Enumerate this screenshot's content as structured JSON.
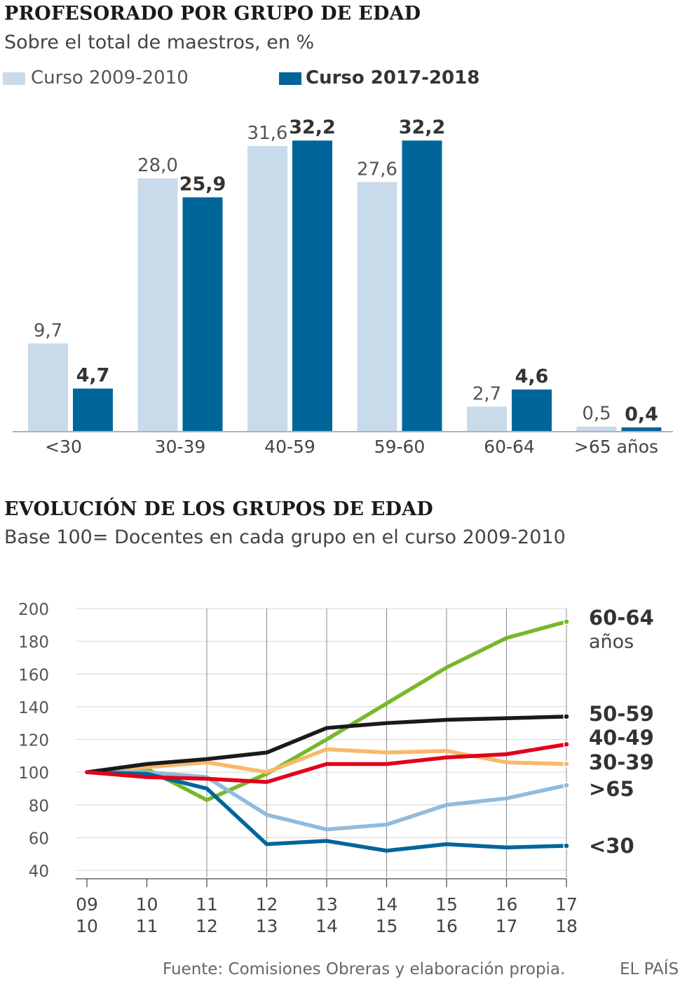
{
  "chart_data": [
    {
      "type": "bar",
      "title": "PROFESORADO POR GRUPO DE EDAD",
      "subtitle": "Sobre el total de maestros, en %",
      "categories": [
        "<30",
        "30-39",
        "40-59",
        "59-60",
        "60-64",
        ">65 años"
      ],
      "series": [
        {
          "name": "Curso 2009-2010",
          "color": "#c9dbea",
          "values": [
            9.7,
            28.0,
            31.6,
            27.6,
            2.7,
            0.5
          ],
          "labels": [
            "9,7",
            "28,0",
            "31,6",
            "27,6",
            "2,7",
            "0,5"
          ]
        },
        {
          "name": "Curso 2017-2018",
          "color": "#00669a",
          "values": [
            4.7,
            25.9,
            32.2,
            32.2,
            4.6,
            0.4
          ],
          "labels": [
            "4,7",
            "25,9",
            "32,2",
            "32,2",
            "4,6",
            "0,4"
          ]
        }
      ],
      "ylim": [
        0,
        33
      ]
    },
    {
      "type": "line",
      "title": "EVOLUCIÓN DE LOS GRUPOS DE EDAD",
      "subtitle": "Base 100= Docentes en cada grupo en el curso 2009-2010",
      "x": [
        [
          "09",
          "10"
        ],
        [
          "10",
          "11"
        ],
        [
          "11",
          "12"
        ],
        [
          "12",
          "13"
        ],
        [
          "13",
          "14"
        ],
        [
          "14",
          "15"
        ],
        [
          "15",
          "16"
        ],
        [
          "16",
          "17"
        ],
        [
          "17",
          "18"
        ]
      ],
      "yticks": [
        40,
        60,
        80,
        100,
        120,
        140,
        160,
        180,
        200
      ],
      "ylim": [
        40,
        200
      ],
      "grid": true,
      "series": [
        {
          "name": "60-64",
          "sublabel": "años",
          "color": "#76b82a",
          "values": [
            100,
            102,
            83,
            99,
            120,
            142,
            164,
            182,
            192
          ]
        },
        {
          "name": "50-59",
          "color": "#1a1a1a",
          "values": [
            100,
            105,
            108,
            112,
            127,
            130,
            132,
            133,
            134
          ]
        },
        {
          "name": "40-49",
          "color": "#e3001b",
          "values": [
            100,
            97,
            96,
            94,
            105,
            105,
            109,
            111,
            117
          ]
        },
        {
          "name": "30-39",
          "color": "#f7b96a",
          "values": [
            100,
            103,
            106,
            100,
            114,
            112,
            113,
            106,
            105
          ]
        },
        {
          "name": ">65",
          "color": "#8fbbde",
          "values": [
            100,
            100,
            97,
            74,
            65,
            68,
            80,
            84,
            92
          ]
        },
        {
          "name": "<30",
          "color": "#00669a",
          "values": [
            100,
            99,
            90,
            56,
            58,
            52,
            56,
            54,
            55
          ]
        }
      ]
    }
  ],
  "footer": {
    "source": "Fuente: Comisiones Obreras y elaboración propia.",
    "brand": "EL PAÍS"
  }
}
